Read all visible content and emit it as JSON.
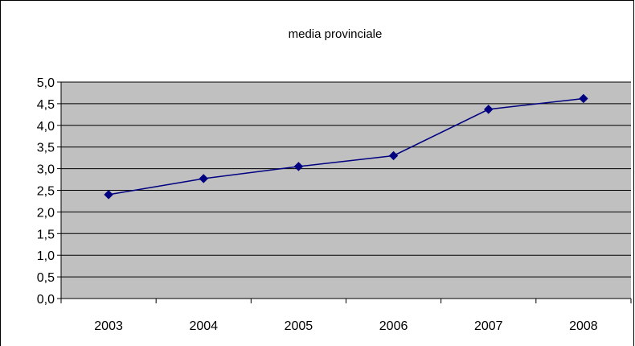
{
  "chart_data": {
    "type": "line",
    "title": "media provinciale",
    "xlabel": "",
    "ylabel": "",
    "categories": [
      "2003",
      "2004",
      "2005",
      "2006",
      "2007",
      "2008"
    ],
    "series": [
      {
        "values": [
          2.4,
          2.77,
          3.05,
          3.3,
          4.37,
          4.62
        ]
      }
    ],
    "ylim": [
      0,
      5
    ],
    "yticks": [
      "0,0",
      "0,5",
      "1,0",
      "1,5",
      "2,0",
      "2,5",
      "3,0",
      "3,5",
      "4,0",
      "4,5",
      "5,0"
    ],
    "grid": true,
    "legend": "none",
    "colors": {
      "plot_background": "#c0c0c0",
      "series_line": "#000080",
      "marker": "#000080",
      "gridline": "#000000",
      "frame": "#000000"
    },
    "marker_shape": "diamond"
  }
}
